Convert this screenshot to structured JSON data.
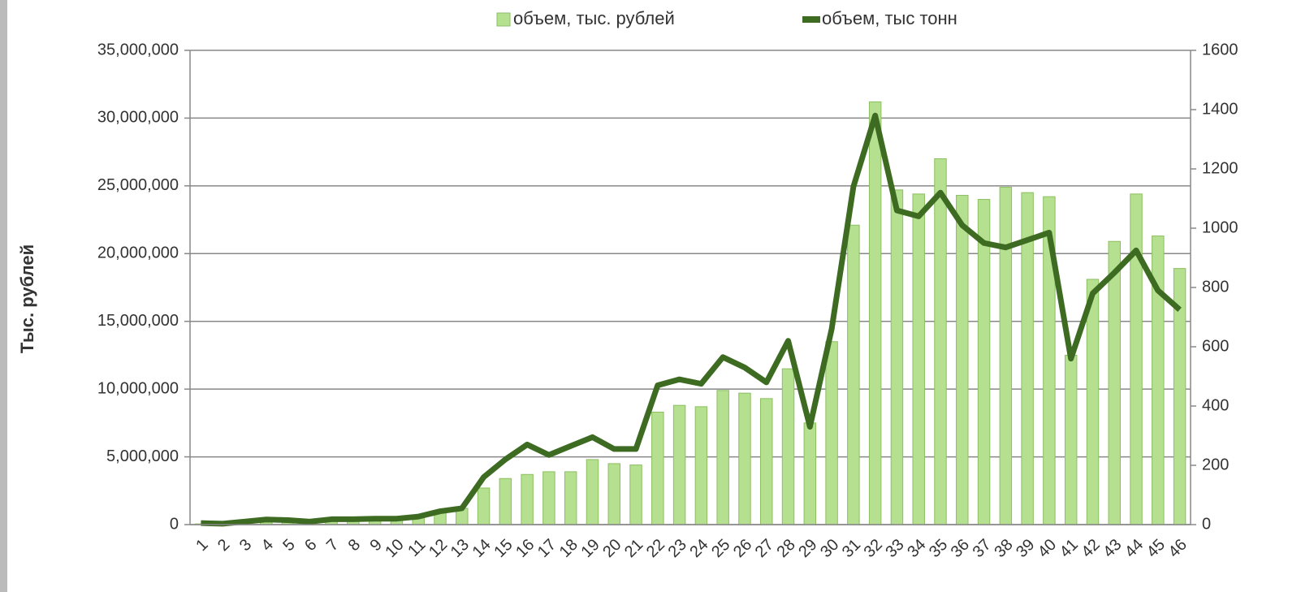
{
  "chart_data": {
    "type": "bar_line",
    "y_label": "Тыс. рублей",
    "categories": [
      "1",
      "2",
      "3",
      "4",
      "5",
      "6",
      "7",
      "8",
      "9",
      "10",
      "11",
      "12",
      "13",
      "14",
      "15",
      "16",
      "17",
      "18",
      "19",
      "20",
      "21",
      "22",
      "23",
      "24",
      "25",
      "26",
      "27",
      "28",
      "29",
      "30",
      "31",
      "32",
      "33",
      "34",
      "35",
      "36",
      "37",
      "38",
      "39",
      "40",
      "41",
      "42",
      "43",
      "44",
      "45",
      "46"
    ],
    "series": [
      {
        "name": "объем, тыс. рублей",
        "type": "bar",
        "color": "#b5e08f",
        "values": [
          50000,
          80000,
          150000,
          200000,
          200000,
          150000,
          250000,
          250000,
          300000,
          300000,
          500000,
          900000,
          1200000,
          2700000,
          3400000,
          3700000,
          3900000,
          3900000,
          4800000,
          4500000,
          4400000,
          8300000,
          8800000,
          8700000,
          9900000,
          9700000,
          9300000,
          11500000,
          7500000,
          13500000,
          22100000,
          31200000,
          24700000,
          24400000,
          27000000,
          24300000,
          24000000,
          24900000,
          24500000,
          24200000,
          12500000,
          18100000,
          20900000,
          24400000,
          21300000,
          18900000
        ]
      },
      {
        "name": "объем, тыс тонн",
        "type": "line",
        "axis": "y2",
        "color": "#3d6b22",
        "values": [
          5,
          3,
          10,
          17,
          15,
          10,
          18,
          18,
          20,
          20,
          27,
          45,
          55,
          160,
          220,
          270,
          235,
          265,
          295,
          255,
          255,
          470,
          490,
          475,
          565,
          530,
          480,
          620,
          330,
          660,
          1140,
          1380,
          1060,
          1040,
          1120,
          1010,
          950,
          935,
          960,
          985,
          560,
          780,
          850,
          925,
          790,
          725
        ]
      }
    ],
    "ylim": [
      0,
      35000000
    ],
    "yticks": [
      0,
      {
        "value": 5000000,
        "label": "5,000,000"
      },
      {
        "value": 10000000,
        "label": "10,000,000"
      },
      {
        "value": 15000000,
        "label": "15,000,000"
      },
      {
        "value": 20000000,
        "label": "20,000,000"
      },
      {
        "value": 25000000,
        "label": "25,000,000"
      },
      {
        "value": 30000000,
        "label": "30,000,000"
      },
      {
        "value": 35000000,
        "label": "35,000,000"
      }
    ],
    "y2lim": [
      0,
      1600
    ],
    "y2ticks": [
      0,
      200,
      400,
      600,
      800,
      1000,
      1200,
      1400,
      1600
    ],
    "grid": true,
    "legend": "top"
  }
}
